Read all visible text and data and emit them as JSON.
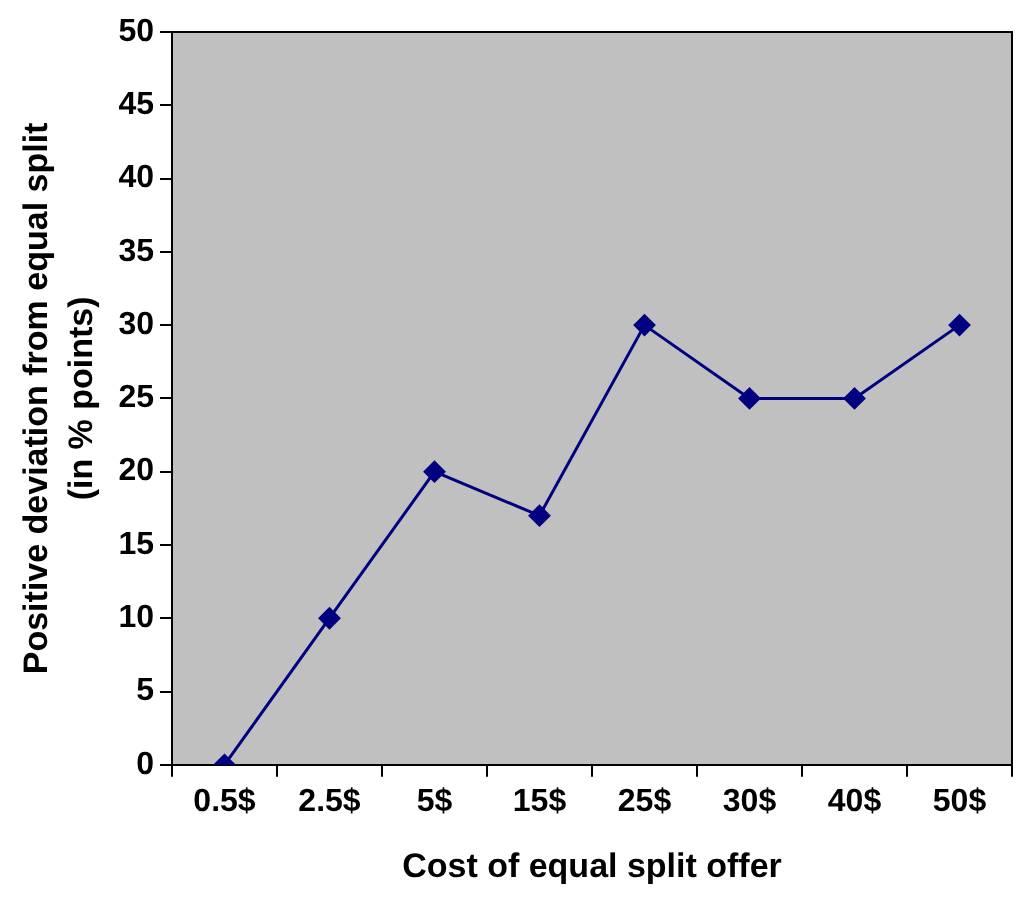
{
  "chart_data": {
    "type": "line",
    "xlabel": "Cost of equal split offer",
    "ylabel": "Positive deviation from equal split\n(in % points)",
    "categories": [
      "0.5$",
      "2.5$",
      "5$",
      "15$",
      "25$",
      "30$",
      "40$",
      "50$"
    ],
    "series": [
      {
        "color": "#000080",
        "values": [
          0,
          10,
          20,
          17,
          30,
          25,
          25,
          30
        ]
      }
    ],
    "ylim": [
      0,
      50
    ],
    "yticks": [
      0,
      5,
      10,
      15,
      20,
      25,
      30,
      35,
      40,
      45,
      50
    ],
    "grid": false,
    "legend": false,
    "marker": "diamond",
    "line_style": "solid"
  }
}
